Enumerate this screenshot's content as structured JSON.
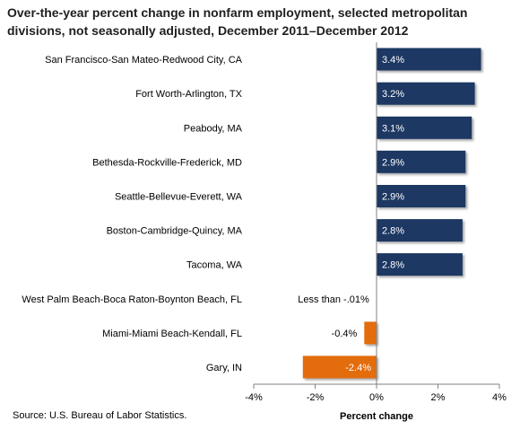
{
  "chart_data": {
    "type": "bar",
    "orientation": "horizontal",
    "title": "Over-the-year percent change in nonfarm employment, selected metropolitan divisions, not seasonally adjusted, December 2011–December 2012",
    "xlabel": "Percent change",
    "ylabel": "",
    "xlim": [
      -4,
      4
    ],
    "x_ticks": [
      "-4%",
      "-2%",
      "0%",
      "2%",
      "4%"
    ],
    "x_tick_values": [
      -4,
      -2,
      0,
      2,
      4
    ],
    "grid": false,
    "categories": [
      "San Francisco-San Mateo-Redwood City, CA",
      "Fort Worth-Arlington, TX",
      "Peabody, MA",
      "Bethesda-Rockville-Frederick, MD",
      "Seattle-Bellevue-Everett, WA",
      "Boston-Cambridge-Quincy, MA",
      "Tacoma, WA",
      "West Palm Beach-Boca Raton-Boynton Beach, FL",
      "Miami-Miami Beach-Kendall, FL",
      "Gary, IN"
    ],
    "values": [
      3.4,
      3.2,
      3.1,
      2.9,
      2.9,
      2.8,
      2.8,
      -0.005,
      -0.4,
      -2.4
    ],
    "data_labels": [
      "3.4%",
      "3.2%",
      "3.1%",
      "2.9%",
      "2.9%",
      "2.8%",
      "2.8%",
      "Less than -.01%",
      "-0.4%",
      "-2.4%"
    ],
    "colors": {
      "positive": "#1f3864",
      "negative": "#e36c09"
    }
  },
  "source": "Source:  U.S. Bureau of Labor Statistics."
}
